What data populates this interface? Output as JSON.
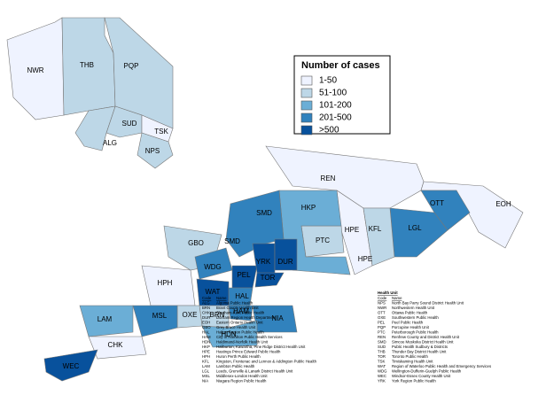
{
  "legend": {
    "title": "Number of cases",
    "items": [
      {
        "label": "1-50",
        "color": "#eff3ff"
      },
      {
        "label": "51-100",
        "color": "#bdd7e7"
      },
      {
        "label": "101-200",
        "color": "#6baed6"
      },
      {
        "label": "201-500",
        "color": "#3182bd"
      },
      {
        "label": ">500",
        "color": "#08519c"
      }
    ]
  },
  "regions": [
    {
      "code": "NWR",
      "color": "#eff3ff"
    },
    {
      "code": "THB",
      "color": "#bdd7e7"
    },
    {
      "code": "PQP",
      "color": "#bdd7e7"
    },
    {
      "code": "SUD",
      "color": "#bdd7e7"
    },
    {
      "code": "TSK",
      "color": "#eff3ff"
    },
    {
      "code": "ALG",
      "color": "#bdd7e7"
    },
    {
      "code": "NPS",
      "color": "#bdd7e7"
    },
    {
      "code": "REN",
      "color": "#eff3ff"
    },
    {
      "code": "HPE",
      "color": "#eff3ff"
    },
    {
      "code": "EOH",
      "color": "#eff3ff"
    },
    {
      "code": "OTT",
      "color": "#3182bd"
    },
    {
      "code": "LGL",
      "color": "#3182bd"
    },
    {
      "code": "KFL",
      "color": "#bdd7e7"
    },
    {
      "code": "PTC",
      "color": "#bdd7e7"
    },
    {
      "code": "HKP",
      "color": "#6baed6"
    },
    {
      "code": "SMD",
      "color": "#3182bd"
    },
    {
      "code": "GBO",
      "color": "#bdd7e7"
    },
    {
      "code": "HPH",
      "color": "#eff3ff"
    },
    {
      "code": "WDG",
      "color": "#3182bd"
    },
    {
      "code": "PEL",
      "color": "#08519c"
    },
    {
      "code": "YRK",
      "color": "#08519c"
    },
    {
      "code": "DUR",
      "color": "#08519c"
    },
    {
      "code": "TOR",
      "color": "#08519c"
    },
    {
      "code": "HAL",
      "color": "#3182bd"
    },
    {
      "code": "HAM",
      "color": "#3182bd"
    },
    {
      "code": "WAT",
      "color": "#08519c"
    },
    {
      "code": "NIA",
      "color": "#3182bd"
    },
    {
      "code": "BRN",
      "color": "#bdd7e7"
    },
    {
      "code": "HDN",
      "color": "#6baed6"
    },
    {
      "code": "OXE",
      "color": "#bdd7e7"
    },
    {
      "code": "MSL",
      "color": "#3182bd"
    },
    {
      "code": "LAM",
      "color": "#6baed6"
    },
    {
      "code": "CHK",
      "color": "#eff3ff"
    },
    {
      "code": "WEC",
      "color": "#08519c"
    }
  ],
  "extra_labels": [
    "SMD",
    "HPE"
  ],
  "table": {
    "title": "Health Unit",
    "headers": [
      [
        "Code",
        "Name"
      ],
      [
        "Code",
        "Name"
      ]
    ],
    "left": [
      [
        "ALG",
        "Algoma Public Health"
      ],
      [
        "BRN",
        "Brant County Health Unit"
      ],
      [
        "CHK",
        "Chatham-Kent Public Health"
      ],
      [
        "DUR",
        "Durham Region Health Department"
      ],
      [
        "EOH",
        "Eastern Ontario Health Unit"
      ],
      [
        "GBO",
        "Grey Bruce Health Unit"
      ],
      [
        "HAL",
        "Halton Region Public Health"
      ],
      [
        "HAM",
        "City of Hamilton Public Health Services"
      ],
      [
        "HDN",
        "Haldimand-Norfolk Health Unit"
      ],
      [
        "HKP",
        "Haliburton, Kawartha, Pine Ridge District Health Unit"
      ],
      [
        "HPE",
        "Hastings Prince Edward Public Health"
      ],
      [
        "HPH",
        "Huron Perth Public Health"
      ],
      [
        "KFL",
        "Kingston, Frontenac and Lennox & Addington Public Health"
      ],
      [
        "LAM",
        "Lambton Public Health"
      ],
      [
        "LGL",
        "Leeds, Grenville & Lanark District Health Unit"
      ],
      [
        "MSL",
        "Middlesex-London Health Unit"
      ],
      [
        "NIA",
        "Niagara Region Public Health"
      ]
    ],
    "right": [
      [
        "NPS",
        "North Bay Parry Sound District Health Unit"
      ],
      [
        "NWR",
        "Northwestern Health Unit"
      ],
      [
        "OTT",
        "Ottawa Public Health"
      ],
      [
        "OXE",
        "Southwestern Public Health"
      ],
      [
        "PEL",
        "Peel Public Health"
      ],
      [
        "PQP",
        "Porcupine Health Unit"
      ],
      [
        "PTC",
        "Peterborough Public Health"
      ],
      [
        "REN",
        "Renfrew County and District Health Unit"
      ],
      [
        "SMD",
        "Simcoe Muskoka District Health Unit"
      ],
      [
        "SUD",
        "Public Health Sudbury & Districts"
      ],
      [
        "THB",
        "Thunder Bay District Health Unit"
      ],
      [
        "TOR",
        "Toronto Public Health"
      ],
      [
        "TSK",
        "Timiskaming Health Unit"
      ],
      [
        "WAT",
        "Region of Waterloo Public Health and Emergency Services"
      ],
      [
        "WDG",
        "Wellington-Dufferin-Guelph Public Health"
      ],
      [
        "WEC",
        "Windsor-Essex County Health Unit"
      ],
      [
        "YRK",
        "York Region Public Health"
      ]
    ]
  }
}
